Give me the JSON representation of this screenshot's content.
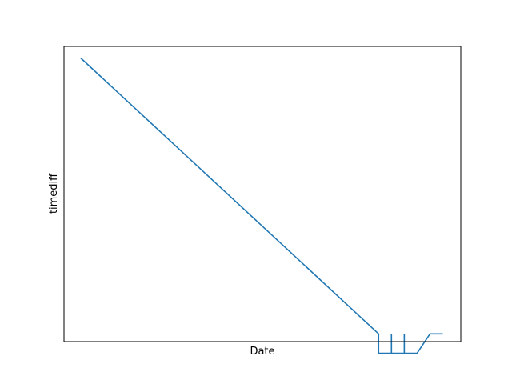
{
  "chart_data": {
    "type": "line",
    "title": "",
    "xlabel": "Date",
    "ylabel": "timediff",
    "grid": false,
    "legend": "none",
    "x_ticks_visible": false,
    "y_ticks_visible": false,
    "xlim": [
      -1.3,
      29.6
    ],
    "ylim": [
      -1.3,
      21.6
    ],
    "series": [
      {
        "color": "#1f77b4",
        "x": [
          0,
          23.2,
          23.2,
          24.2,
          24.2,
          24.2,
          25.2,
          25.2,
          25.2,
          26.2,
          27.2,
          28.2
        ],
        "y": [
          20.7,
          -0.7,
          -2.2,
          -2.2,
          -0.7,
          -2.2,
          -2.2,
          -0.7,
          -2.2,
          -2.2,
          -0.7,
          -0.7
        ]
      }
    ]
  }
}
